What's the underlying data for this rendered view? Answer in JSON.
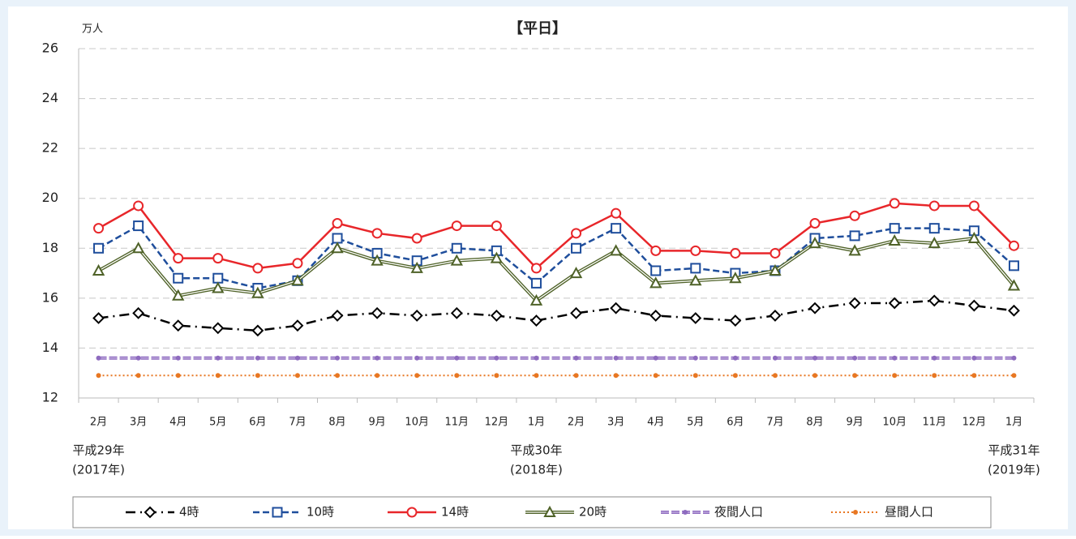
{
  "chart_data": {
    "type": "line",
    "title": "【平日】",
    "y_unit": "万人",
    "categories": [
      "2月",
      "3月",
      "4月",
      "5月",
      "6月",
      "7月",
      "8月",
      "9月",
      "10月",
      "11月",
      "12月",
      "1月",
      "2月",
      "3月",
      "4月",
      "5月",
      "6月",
      "7月",
      "8月",
      "9月",
      "10月",
      "11月",
      "12月",
      "1月"
    ],
    "year_labels": [
      {
        "label": "平成29年",
        "sub": "(2017年)"
      },
      {
        "label": "平成30年",
        "sub": "(2018年)"
      },
      {
        "label": "平成31年",
        "sub": "(2019年)"
      }
    ],
    "ylim": [
      12,
      26
    ],
    "yticks": [
      12,
      14,
      16,
      18,
      20,
      22,
      24,
      26
    ],
    "grid": true,
    "series": [
      {
        "name": "4時",
        "color": "#000000",
        "marker": "diamond",
        "line": "dashdot",
        "values": [
          15.2,
          15.4,
          14.9,
          14.8,
          14.7,
          14.9,
          15.3,
          15.4,
          15.3,
          15.4,
          15.3,
          15.1,
          15.4,
          15.6,
          15.3,
          15.2,
          15.1,
          15.3,
          15.6,
          15.8,
          15.8,
          15.9,
          15.7,
          15.5
        ]
      },
      {
        "name": "10時",
        "color": "#1f4e9c",
        "marker": "square",
        "line": "dashed",
        "values": [
          18.0,
          18.9,
          16.8,
          16.8,
          16.4,
          16.7,
          18.4,
          17.8,
          17.5,
          18.0,
          17.9,
          16.6,
          18.0,
          18.8,
          17.1,
          17.2,
          17.0,
          17.1,
          18.4,
          18.5,
          18.8,
          18.8,
          18.7,
          17.3
        ]
      },
      {
        "name": "14時",
        "color": "#e8262a",
        "marker": "circle",
        "line": "solid",
        "values": [
          18.8,
          19.7,
          17.6,
          17.6,
          17.2,
          17.4,
          19.0,
          18.6,
          18.4,
          18.9,
          18.9,
          17.2,
          18.6,
          19.4,
          17.9,
          17.9,
          17.8,
          17.8,
          19.0,
          19.3,
          19.8,
          19.7,
          19.7,
          18.1
        ]
      },
      {
        "name": "20時",
        "color": "#4f6228",
        "marker": "triangle",
        "line": "double",
        "values": [
          17.1,
          18.0,
          16.1,
          16.4,
          16.2,
          16.7,
          18.0,
          17.5,
          17.2,
          17.5,
          17.6,
          15.9,
          17.0,
          17.9,
          16.6,
          16.7,
          16.8,
          17.1,
          18.2,
          17.9,
          18.3,
          18.2,
          18.4,
          16.5
        ]
      },
      {
        "name": "夜間人口",
        "color": "#8e6bbf",
        "marker": "dot",
        "line": "thick",
        "values": [
          13.6,
          13.6,
          13.6,
          13.6,
          13.6,
          13.6,
          13.6,
          13.6,
          13.6,
          13.6,
          13.6,
          13.6,
          13.6,
          13.6,
          13.6,
          13.6,
          13.6,
          13.6,
          13.6,
          13.6,
          13.6,
          13.6,
          13.6,
          13.6
        ]
      },
      {
        "name": "昼間人口",
        "color": "#e87722",
        "marker": "dot",
        "line": "dotted",
        "values": [
          12.9,
          12.9,
          12.9,
          12.9,
          12.9,
          12.9,
          12.9,
          12.9,
          12.9,
          12.9,
          12.9,
          12.9,
          12.9,
          12.9,
          12.9,
          12.9,
          12.9,
          12.9,
          12.9,
          12.9,
          12.9,
          12.9,
          12.9,
          12.9
        ]
      }
    ]
  }
}
